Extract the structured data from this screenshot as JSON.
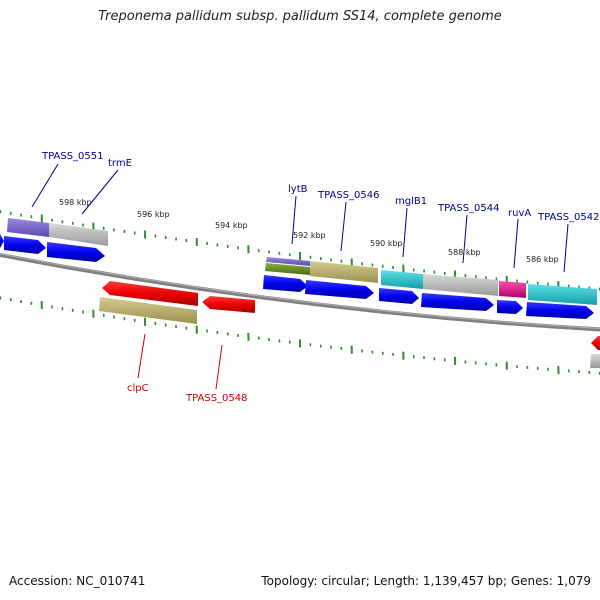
{
  "header": {
    "title": "Treponema pallidum subsp. pallidum SS14, complete genome"
  },
  "footer": {
    "accession": "Accession: NC_010741",
    "summary": "Topology: circular; Length: 1,139,457 bp; Genes: 1,079"
  },
  "ruler": {
    "labels": [
      "598 kbp",
      "596 kbp",
      "594 kbp",
      "592 kbp",
      "590 kbp",
      "588 kbp",
      "586 kbp"
    ]
  },
  "genes": {
    "forward": [
      {
        "label": "TPASS_0551",
        "color": "#00008b"
      },
      {
        "label": "trmE",
        "color": "#00008b"
      },
      {
        "label": "lytB",
        "color": "#00008b"
      },
      {
        "label": "TPASS_0546",
        "color": "#00008b"
      },
      {
        "label": "mglB1",
        "color": "#00008b"
      },
      {
        "label": "TPASS_0544",
        "color": "#00008b"
      },
      {
        "label": "ruvA",
        "color": "#00008b"
      },
      {
        "label": "TPASS_0542",
        "color": "#00008b"
      }
    ],
    "reverse": [
      {
        "label": "clpC",
        "color": "#cc0000"
      },
      {
        "label": "TPASS_0548",
        "color": "#cc0000"
      }
    ]
  },
  "colors": {
    "forward_cds": "#0000ee",
    "reverse_cds": "#ee0000",
    "backbone": "#808080",
    "ticks": "#2e8b2e",
    "cog_purple": "#7b68c8",
    "cog_gray": "#bdbdbd",
    "cog_olive": "#b8b070",
    "cog_green": "#6b8e23",
    "cog_cyan": "#20c0c8",
    "cog_magenta": "#e0108a"
  }
}
